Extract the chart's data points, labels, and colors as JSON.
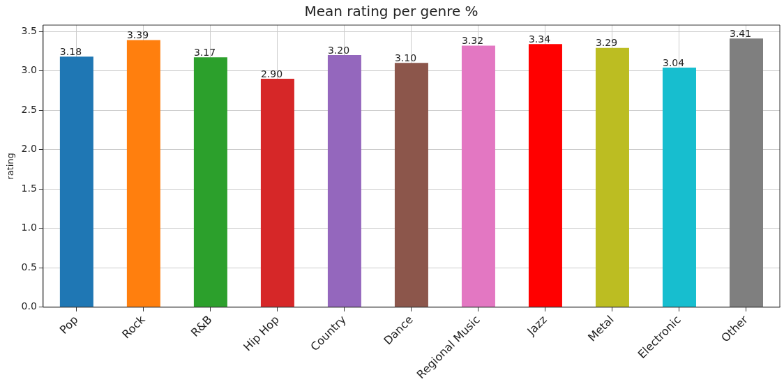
{
  "chart_data": {
    "type": "bar",
    "title": "Mean rating per genre %",
    "ylabel": "rating",
    "categories": [
      "Pop",
      "Rock",
      "R&B",
      "Hip Hop",
      "Country",
      "Dance",
      "Regional Music",
      "Jazz",
      "Metal",
      "Electronic",
      "Other"
    ],
    "values": [
      3.18,
      3.39,
      3.17,
      2.9,
      3.2,
      3.1,
      3.32,
      3.34,
      3.29,
      3.04,
      3.41
    ],
    "value_labels": [
      "3.18",
      "3.39",
      "3.17",
      "2.90",
      "3.20",
      "3.10",
      "3.32",
      "3.34",
      "3.29",
      "3.04",
      "3.41"
    ],
    "colors": [
      "#1f77b4",
      "#ff7f0e",
      "#2ca02c",
      "#d62728",
      "#9467bd",
      "#8c564b",
      "#e377c2",
      "#ff0000",
      "#bcbd22",
      "#17becf",
      "#7f7f7f"
    ],
    "ylim": [
      0,
      3.58
    ],
    "yticks": [
      {
        "value": 0,
        "label": "0.0"
      },
      0.5,
      {
        "value": 1,
        "label": "1.0"
      },
      1.5,
      {
        "value": 2,
        "label": "2.0"
      },
      2.5,
      {
        "value": 3,
        "label": "3.0"
      },
      3.5
    ],
    "grid": true
  }
}
